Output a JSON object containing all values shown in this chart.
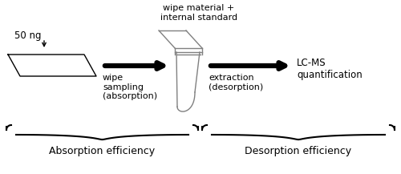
{
  "bg_color": "#ffffff",
  "text_color": "#000000",
  "label_50ng": "50 ng",
  "label_wipe_material": "wipe material +\ninternal standard",
  "label_wipe_sampling": "wipe\nsampling\n(absorption)",
  "label_extraction": "extraction\n(desorption)",
  "label_lcms": "LC-MS\nquantification",
  "label_absorption_eff": "Absorption efficiency",
  "label_desorption_eff": "Desorption efficiency",
  "figsize": [
    5.0,
    2.17
  ],
  "dpi": 100
}
